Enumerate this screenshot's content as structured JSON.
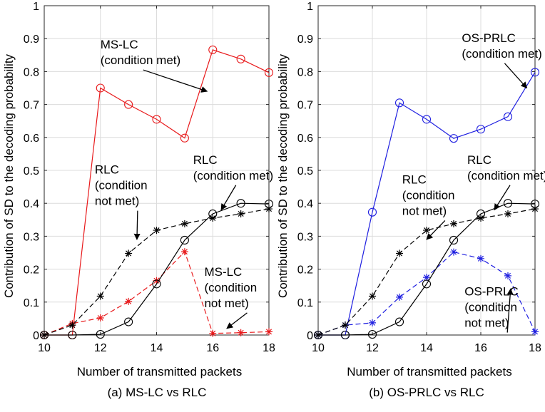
{
  "chart_data": [
    {
      "type": "line",
      "caption": "(a) MS-LC vs RLC",
      "xlabel": "Number of transmitted packets",
      "ylabel": "Contribution of SD to the decoding probability",
      "xlim": [
        10,
        18
      ],
      "ylim": [
        0,
        1
      ],
      "x_ticks": [
        10,
        12,
        14,
        16,
        18
      ],
      "y_ticks": [
        0,
        0.1,
        0.2,
        0.3,
        0.4,
        0.5,
        0.6,
        0.7,
        0.8,
        0.9,
        1
      ],
      "y_tick_labels": [
        "0",
        "0.1",
        "0.2",
        "0.3",
        "0.4",
        "0.5",
        "0.6",
        "0.7",
        "0.8",
        "0.9",
        "1"
      ],
      "grid": true,
      "x": [
        10,
        11,
        12,
        13,
        14,
        15,
        16,
        17,
        18
      ],
      "series": [
        {
          "name": "MS-LC (condition met)",
          "color": "#e8191b",
          "dash": "solid",
          "marker": "circle",
          "values": [
            0,
            0,
            0.75,
            0.7,
            0.655,
            0.598,
            0.866,
            0.838,
            0.797
          ]
        },
        {
          "name": "MS-LC (condition not met)",
          "color": "#e8191b",
          "dash": "dashed",
          "marker": "star",
          "values": [
            0,
            0.035,
            0.052,
            0.102,
            0.165,
            0.253,
            0.005,
            0.007,
            0.01
          ]
        },
        {
          "name": "RLC (condition met)",
          "color": "#000000",
          "dash": "solid",
          "marker": "circle",
          "values": [
            0,
            0,
            0.002,
            0.04,
            0.155,
            0.288,
            0.368,
            0.4,
            0.398
          ]
        },
        {
          "name": "RLC (condition not met)",
          "color": "#000000",
          "dash": "dashed",
          "marker": "star",
          "values": [
            0,
            0.03,
            0.118,
            0.248,
            0.318,
            0.338,
            0.355,
            0.368,
            0.383
          ]
        }
      ],
      "annotations": [
        {
          "lines": [
            "MS-LC",
            "(condition met)"
          ],
          "x_data": 12.0,
          "y_data": 0.87,
          "arrow_to": [
            15.8,
            0.74
          ]
        },
        {
          "lines": [
            "RLC",
            "(condition met)"
          ],
          "x_data": 15.3,
          "y_data": 0.52,
          "arrow_to": [
            16.3,
            0.38
          ]
        },
        {
          "lines": [
            "RLC",
            "(condition",
            "not met)"
          ],
          "x_data": 11.8,
          "y_data": 0.49,
          "arrow_to": [
            13.3,
            0.29
          ]
        },
        {
          "lines": [
            "MS-LC",
            "(condition",
            "not met)"
          ],
          "x_data": 15.7,
          "y_data": 0.18,
          "arrow_to": [
            16.5,
            0.02
          ]
        }
      ]
    },
    {
      "type": "line",
      "caption": "(b) OS-PRLC vs RLC",
      "xlabel": "Number of transmitted packets",
      "ylabel": "Contribution of SD to the decoding probability",
      "xlim": [
        10,
        18
      ],
      "ylim": [
        0,
        1
      ],
      "x_ticks": [
        10,
        12,
        14,
        16,
        18
      ],
      "y_ticks": [
        0,
        0.1,
        0.2,
        0.3,
        0.4,
        0.5,
        0.6,
        0.7,
        0.8,
        0.9,
        1
      ],
      "y_tick_labels": [
        "0",
        "0.1",
        "0.2",
        "0.3",
        "0.4",
        "0.5",
        "0.6",
        "0.7",
        "0.8",
        "0.9",
        "1"
      ],
      "grid": true,
      "x": [
        10,
        11,
        12,
        13,
        14,
        15,
        16,
        17,
        18
      ],
      "series": [
        {
          "name": "OS-PRLC (condition met)",
          "color": "#1f1fe0",
          "dash": "solid",
          "marker": "circle",
          "values": [
            0,
            0,
            0.373,
            0.705,
            0.655,
            0.597,
            0.625,
            0.663,
            0.798
          ]
        },
        {
          "name": "OS-PRLC (condition not met)",
          "color": "#1f1fe0",
          "dash": "dashed",
          "marker": "star",
          "values": [
            0,
            0.03,
            0.037,
            0.115,
            0.175,
            0.252,
            0.232,
            0.18,
            0.01
          ]
        },
        {
          "name": "RLC (condition met)",
          "color": "#000000",
          "dash": "solid",
          "marker": "circle",
          "values": [
            0,
            0,
            0.002,
            0.04,
            0.155,
            0.288,
            0.368,
            0.4,
            0.398
          ]
        },
        {
          "name": "RLC (condition not met)",
          "color": "#000000",
          "dash": "dashed",
          "marker": "star",
          "values": [
            0,
            0.03,
            0.118,
            0.248,
            0.318,
            0.338,
            0.355,
            0.368,
            0.383
          ]
        }
      ],
      "annotations": [
        {
          "lines": [
            "OS-PRLC",
            "(condition met)"
          ],
          "x_data": 15.3,
          "y_data": 0.89,
          "arrow_to": [
            17.7,
            0.75
          ]
        },
        {
          "lines": [
            "RLC",
            "(condition met)"
          ],
          "x_data": 15.5,
          "y_data": 0.52,
          "arrow_to": [
            16.5,
            0.38
          ]
        },
        {
          "lines": [
            "RLC",
            "(condition",
            "not met)"
          ],
          "x_data": 13.1,
          "y_data": 0.46,
          "arrow_to": [
            14.0,
            0.29
          ]
        },
        {
          "lines": [
            "OS-PRLC",
            "(condition",
            "not met)"
          ],
          "x_data": 15.4,
          "y_data": 0.12,
          "arrow_to": [
            17.1,
            0.14
          ]
        }
      ]
    }
  ]
}
